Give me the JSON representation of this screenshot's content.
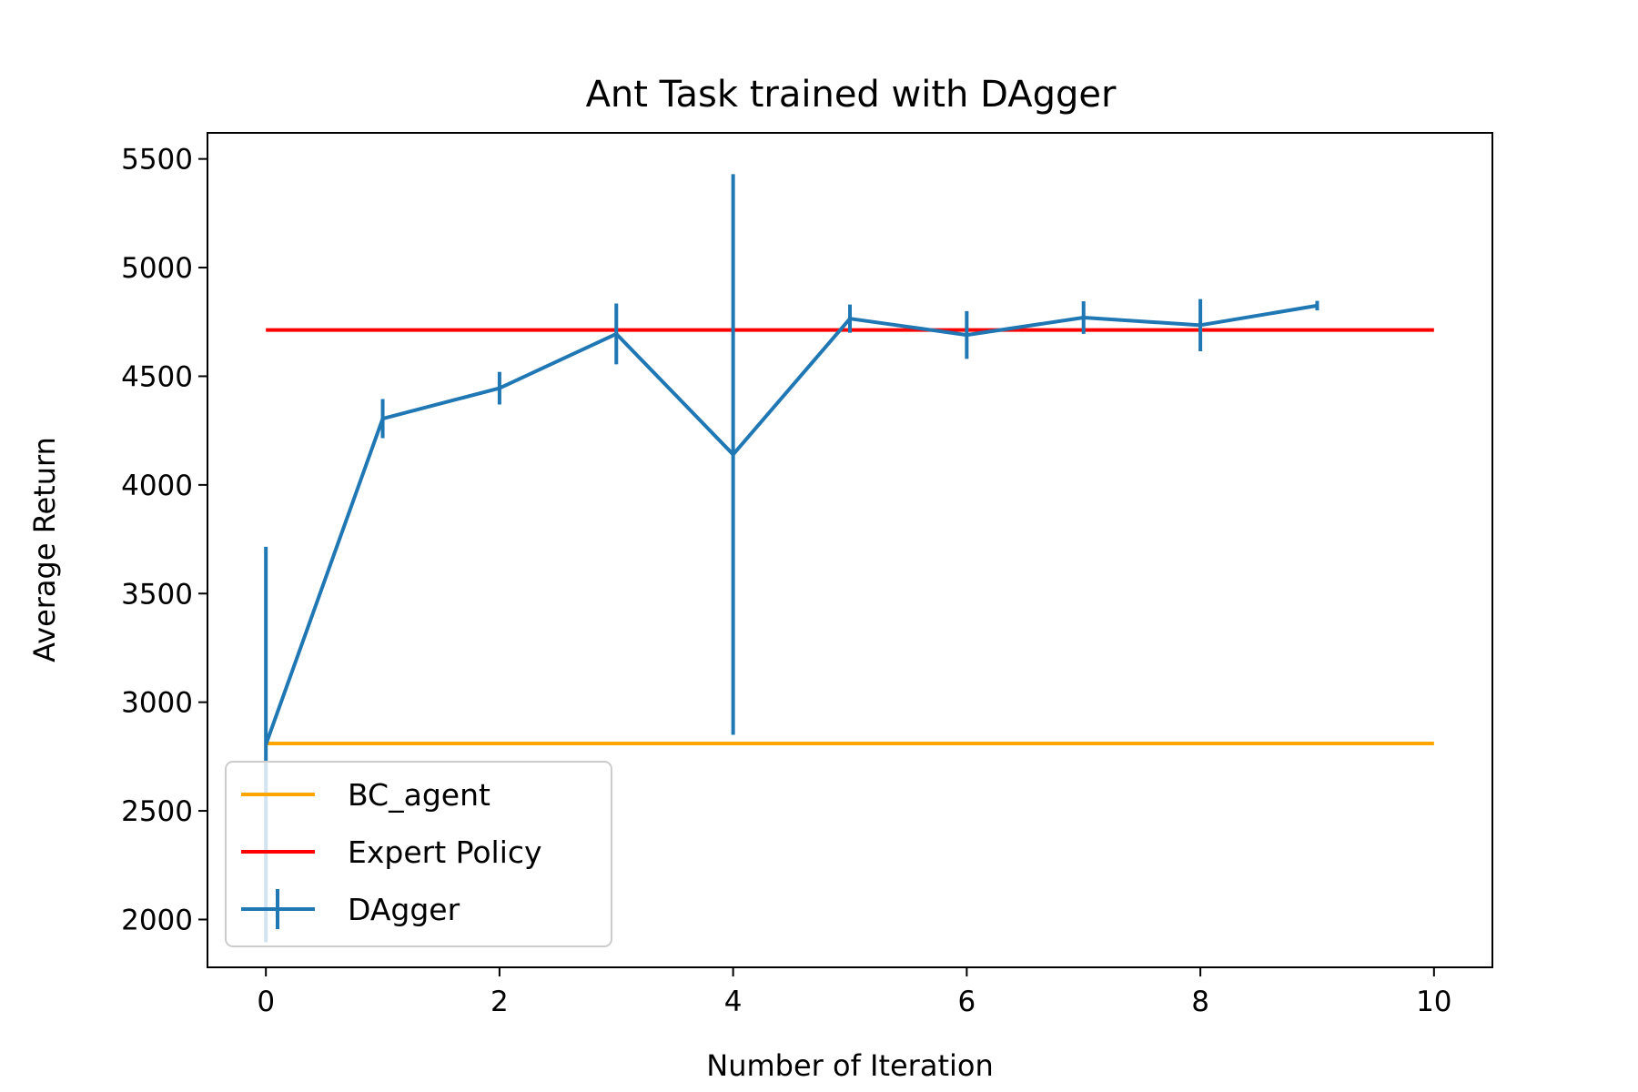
{
  "chart_data": {
    "type": "line",
    "title": "Ant Task trained with DAgger",
    "xlabel": "Number of Iteration",
    "ylabel": "Average Return",
    "xlim": [
      -0.5,
      10.5
    ],
    "ylim": [
      1780,
      5620
    ],
    "x_ticks": [
      0,
      2,
      4,
      6,
      8,
      10
    ],
    "y_ticks": [
      2000,
      2500,
      3000,
      3500,
      4000,
      4500,
      5000,
      5500
    ],
    "grid": false,
    "legend_position": "lower-left",
    "series": [
      {
        "name": "BC_agent",
        "kind": "hline",
        "color": "#ffa500",
        "x_range": [
          0,
          10
        ],
        "y": 2810
      },
      {
        "name": "Expert Policy",
        "kind": "hline",
        "color": "#ff0000",
        "x_range": [
          0,
          10
        ],
        "y": 4713
      },
      {
        "name": "DAgger",
        "kind": "errorbar",
        "color": "#1f77b4",
        "x": [
          0,
          1,
          2,
          3,
          4,
          5,
          6,
          7,
          8,
          9
        ],
        "y": [
          2805,
          4305,
          4445,
          4695,
          4140,
          4765,
          4690,
          4770,
          4735,
          4825
        ],
        "yerr": [
          910,
          90,
          75,
          140,
          1290,
          65,
          110,
          75,
          120,
          22
        ]
      }
    ]
  }
}
